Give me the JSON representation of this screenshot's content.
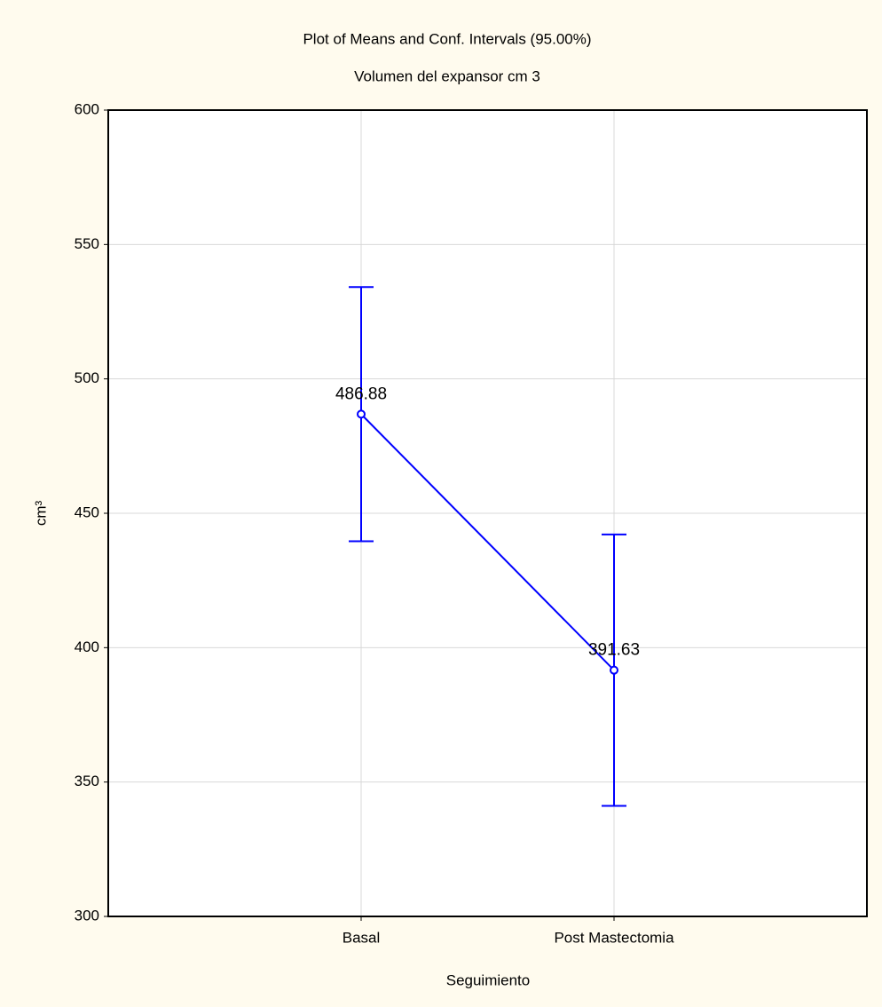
{
  "chart_data": {
    "type": "errorline",
    "title": "Plot of Means and Conf. Intervals (95.00%)",
    "subtitle": "Volumen del expansor cm 3",
    "x_label": "Seguimiento",
    "y_label": "cm³",
    "categories": [
      "Basal",
      "Post Mastectomia"
    ],
    "values": [
      486.88,
      391.63
    ],
    "errors": [
      47.3,
      50.5
    ],
    "color": "#0000ff",
    "ylim": [
      300,
      600
    ],
    "yticks": [
      300,
      350,
      400,
      450,
      500,
      550,
      600
    ],
    "grid": true
  }
}
